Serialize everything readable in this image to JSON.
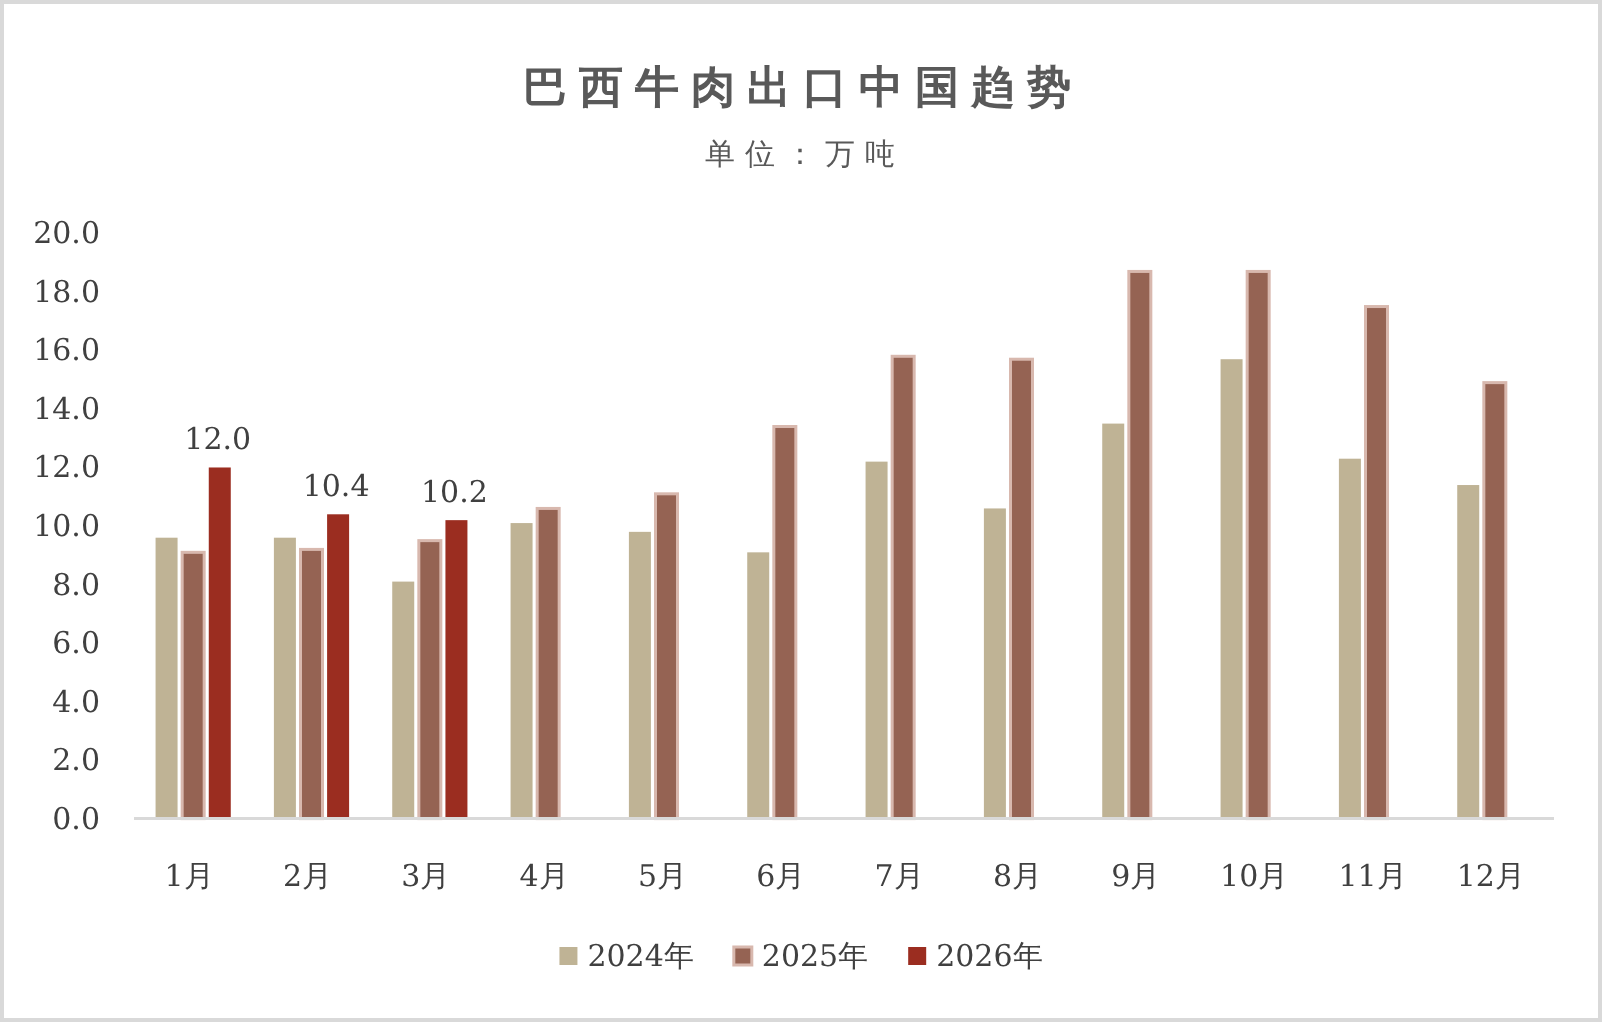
{
  "chart_data": {
    "type": "bar",
    "title": "巴西牛肉出口中国趋势",
    "subtitle": "单位：万吨",
    "categories": [
      "1月",
      "2月",
      "3月",
      "4月",
      "5月",
      "6月",
      "7月",
      "8月",
      "9月",
      "10月",
      "11月",
      "12月"
    ],
    "series": [
      {
        "name": "2024年",
        "color": "#bfb395",
        "values": [
          9.6,
          9.6,
          8.1,
          10.1,
          9.8,
          9.1,
          12.2,
          10.6,
          13.5,
          15.7,
          12.3,
          11.4
        ]
      },
      {
        "name": "2025年",
        "color": "#956353",
        "values": [
          9.1,
          9.2,
          9.5,
          10.6,
          11.1,
          13.4,
          15.8,
          15.7,
          18.7,
          18.7,
          17.5,
          14.9
        ]
      },
      {
        "name": "2026年",
        "color": "#9b2d20",
        "values": [
          12.0,
          10.4,
          10.2,
          null,
          null,
          null,
          null,
          null,
          null,
          null,
          null,
          null
        ],
        "value_labels": [
          "12.0",
          "10.4",
          "10.2",
          null,
          null,
          null,
          null,
          null,
          null,
          null,
          null,
          null
        ]
      }
    ],
    "ylim": [
      0,
      20
    ],
    "yticks": [
      {
        "value": 0,
        "label": "0.0"
      },
      {
        "value": 2,
        "label": "2.0"
      },
      {
        "value": 4,
        "label": "4.0"
      },
      {
        "value": 6,
        "label": "6.0"
      },
      {
        "value": 8,
        "label": "8.0"
      },
      {
        "value": 10,
        "label": "10.0"
      },
      {
        "value": 12,
        "label": "12.0"
      },
      {
        "value": 14,
        "label": "14.0"
      },
      {
        "value": 16,
        "label": "16.0"
      },
      {
        "value": 18,
        "label": "18.0"
      },
      {
        "value": 20,
        "label": "20.0"
      }
    ],
    "grid": false,
    "legend": "bottom"
  }
}
